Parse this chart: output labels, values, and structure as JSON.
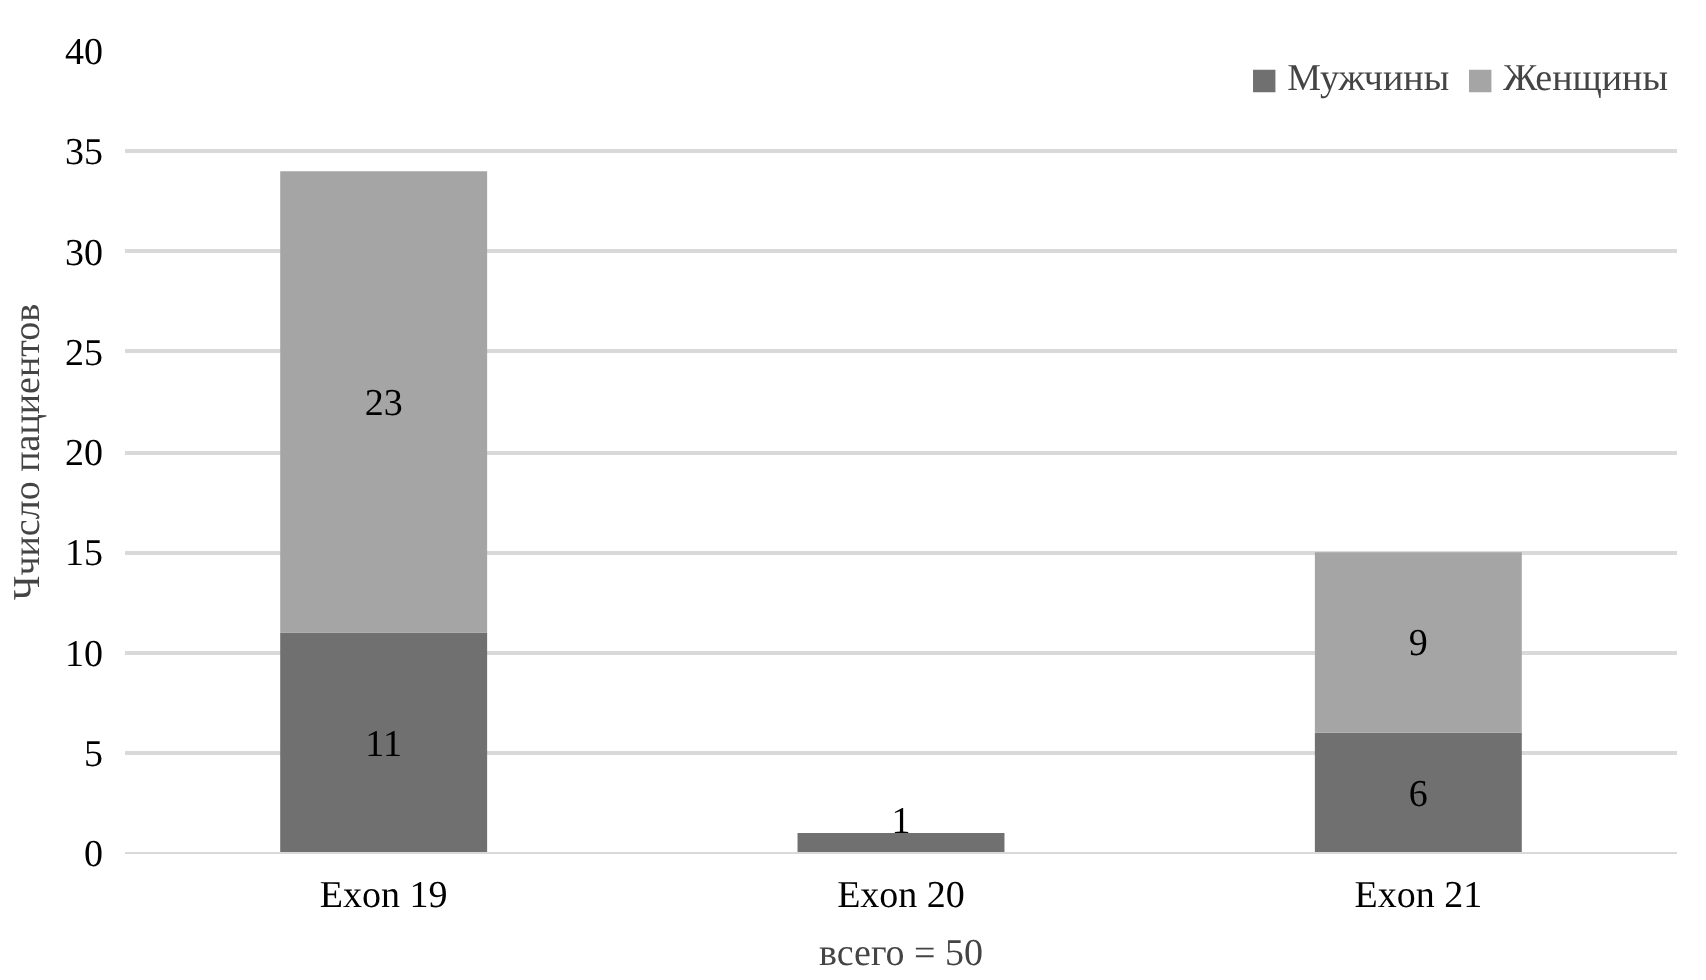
{
  "chart_data": {
    "type": "bar",
    "stacked": true,
    "xlabel": "всего = 50",
    "ylabel": "Ччисло пациентов",
    "categories": [
      "Exon 19",
      "Exon 20",
      "Exon 21"
    ],
    "series": [
      {
        "name": "Мужчины",
        "color": "#707070",
        "values": [
          11,
          1,
          6
        ],
        "value_labels": [
          "11",
          "1",
          "6"
        ]
      },
      {
        "name": "Женщины",
        "color": "#a5a5a5",
        "values": [
          23,
          0,
          9
        ],
        "value_labels": [
          "23",
          null,
          "9"
        ]
      }
    ],
    "ylim": [
      0,
      40
    ],
    "yticks": [
      0,
      5,
      10,
      15,
      20,
      25,
      30,
      35,
      40
    ],
    "grid": "y",
    "legend": "top right"
  }
}
